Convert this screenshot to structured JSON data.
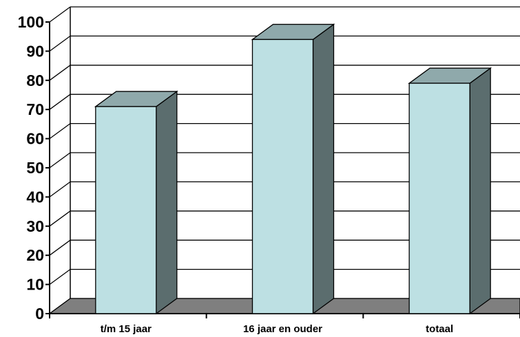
{
  "chart_data": {
    "type": "bar",
    "style": "3d-column",
    "categories": [
      "t/m 15 jaar",
      "16 jaar en ouder",
      "totaal"
    ],
    "values": [
      71,
      94,
      79
    ],
    "ylim": [
      0,
      100
    ],
    "ytick_step": 10,
    "grid": true,
    "legend": "none",
    "colors": {
      "bar_front": "#bde0e3",
      "bar_top": "#8fa9ab",
      "bar_side": "#5b6d6e",
      "floor": "#7f7f7f",
      "grid": "#000000"
    }
  }
}
